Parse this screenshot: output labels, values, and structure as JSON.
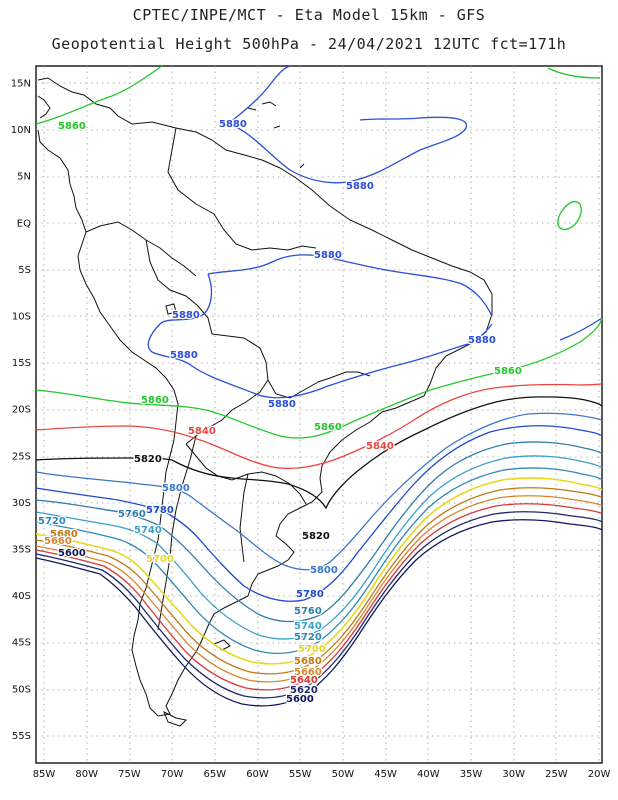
{
  "title_line1": "CPTEC/INPE/MCT - Eta Model 15km - GFS",
  "title_line2": "Geopotential Height 500hPa - 24/04/2021 12UTC fct=171h",
  "lat_labels": [
    "15N",
    "10N",
    "5N",
    "EQ",
    "5S",
    "10S",
    "15S",
    "20S",
    "25S",
    "30S",
    "35S",
    "40S",
    "45S",
    "50S",
    "55S"
  ],
  "lon_labels": [
    "85W",
    "80W",
    "75W",
    "70W",
    "65W",
    "60W",
    "55W",
    "50W",
    "45W",
    "40W",
    "35W",
    "30W",
    "25W",
    "20W"
  ],
  "contour_colors": {
    "5880": "#2b4fd8",
    "5860": "#22c82a",
    "5840": "#e8463c",
    "5820": "#111111",
    "5800": "#3a78c8",
    "5780": "#1f49cc",
    "5760": "#2f7fa8",
    "5740": "#3aa0c8",
    "5720": "#2f88b8",
    "5700": "#e8d81a",
    "5680": "#c07a18",
    "5660": "#d8862c",
    "5640": "#d83838",
    "5620": "#1c2a6a",
    "5600": "#0e1a58"
  },
  "contour_labels": [
    {
      "id": "lab-5860-nw",
      "text": "5860",
      "level": "5860"
    },
    {
      "id": "lab-5880-ne",
      "text": "5880",
      "level": "5880"
    },
    {
      "id": "lab-5880-car",
      "text": "5880",
      "level": "5880"
    },
    {
      "id": "lab-5880-am",
      "text": "5880",
      "level": "5880"
    },
    {
      "id": "lab-5880-bol",
      "text": "5880",
      "level": "5880"
    },
    {
      "id": "lab-5880-per",
      "text": "5880",
      "level": "5880"
    },
    {
      "id": "lab-5880-e",
      "text": "5880",
      "level": "5880"
    },
    {
      "id": "lab-5880-s",
      "text": "5880",
      "level": "5880"
    },
    {
      "id": "lab-5860-w",
      "text": "5860",
      "level": "5860"
    },
    {
      "id": "lab-5860-c",
      "text": "5860",
      "level": "5860"
    },
    {
      "id": "lab-5860-e",
      "text": "5860",
      "level": "5860"
    },
    {
      "id": "lab-5840-w",
      "text": "5840",
      "level": "5840"
    },
    {
      "id": "lab-5840-e",
      "text": "5840",
      "level": "5840"
    },
    {
      "id": "lab-5820-w",
      "text": "5820",
      "level": "5820"
    },
    {
      "id": "lab-5820-e",
      "text": "5820",
      "level": "5820"
    },
    {
      "id": "lab-5800-w",
      "text": "5800",
      "level": "5800"
    },
    {
      "id": "lab-5780-w",
      "text": "5780",
      "level": "5780"
    },
    {
      "id": "lab-5760-w",
      "text": "5760",
      "level": "5760"
    },
    {
      "id": "lab-5740-w",
      "text": "5740",
      "level": "5740"
    },
    {
      "id": "lab-5720-w",
      "text": "5720",
      "level": "5720"
    },
    {
      "id": "lab-5700-w",
      "text": "5700",
      "level": "5700"
    },
    {
      "id": "lab-5680-w",
      "text": "5680",
      "level": "5680"
    },
    {
      "id": "lab-5660-w",
      "text": "5660",
      "level": "5660"
    },
    {
      "id": "lab-5600-w",
      "text": "5600",
      "level": "5600"
    },
    {
      "id": "lab-5800-s",
      "text": "5800",
      "level": "5800"
    },
    {
      "id": "lab-5780-s",
      "text": "5780",
      "level": "5780"
    },
    {
      "id": "lab-5760-s",
      "text": "5760",
      "level": "5760"
    },
    {
      "id": "lab-5740-s",
      "text": "5740",
      "level": "5740"
    },
    {
      "id": "lab-5720-s",
      "text": "5720",
      "level": "5720"
    },
    {
      "id": "lab-5700-s",
      "text": "5700",
      "level": "5700"
    },
    {
      "id": "lab-5680-s",
      "text": "5680",
      "level": "5680"
    },
    {
      "id": "lab-5660-s",
      "text": "5660",
      "level": "5660"
    },
    {
      "id": "lab-5640-s",
      "text": "5640",
      "level": "5640"
    },
    {
      "id": "lab-5620-s",
      "text": "5620",
      "level": "5620"
    },
    {
      "id": "lab-5600-s",
      "text": "5600",
      "level": "5600"
    }
  ]
}
